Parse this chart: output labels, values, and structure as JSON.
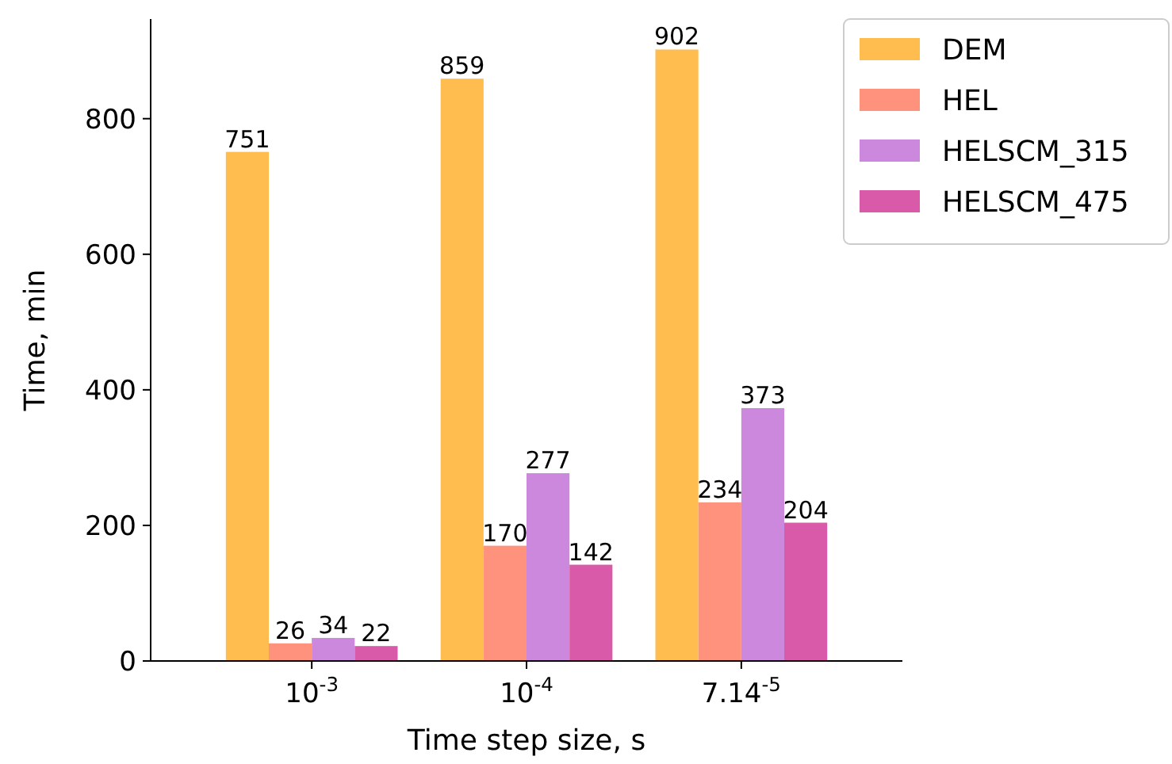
{
  "chart_data": {
    "type": "bar",
    "xlabel": "Time step size, s",
    "ylabel": "Time, min",
    "categories": [
      "10$^{-3}$",
      "10$^{-4}$",
      "7.14$^{-5}$"
    ],
    "series": [
      {
        "name": "DEM",
        "color": "#ffbc4f",
        "values": [
          751,
          859,
          902
        ]
      },
      {
        "name": "HEL",
        "color": "#ff927c",
        "values": [
          26,
          170,
          234
        ]
      },
      {
        "name": "HELSCM_315",
        "color": "#cc88dd",
        "values": [
          34,
          277,
          373
        ]
      },
      {
        "name": "HELSCM_475",
        "color": "#d95aa8",
        "values": [
          22,
          142,
          204
        ]
      }
    ],
    "ylim": [
      0,
      947
    ],
    "yticks": [
      0,
      200,
      400,
      600,
      800
    ],
    "data_labels": true,
    "legend": "top right",
    "grid": false
  }
}
